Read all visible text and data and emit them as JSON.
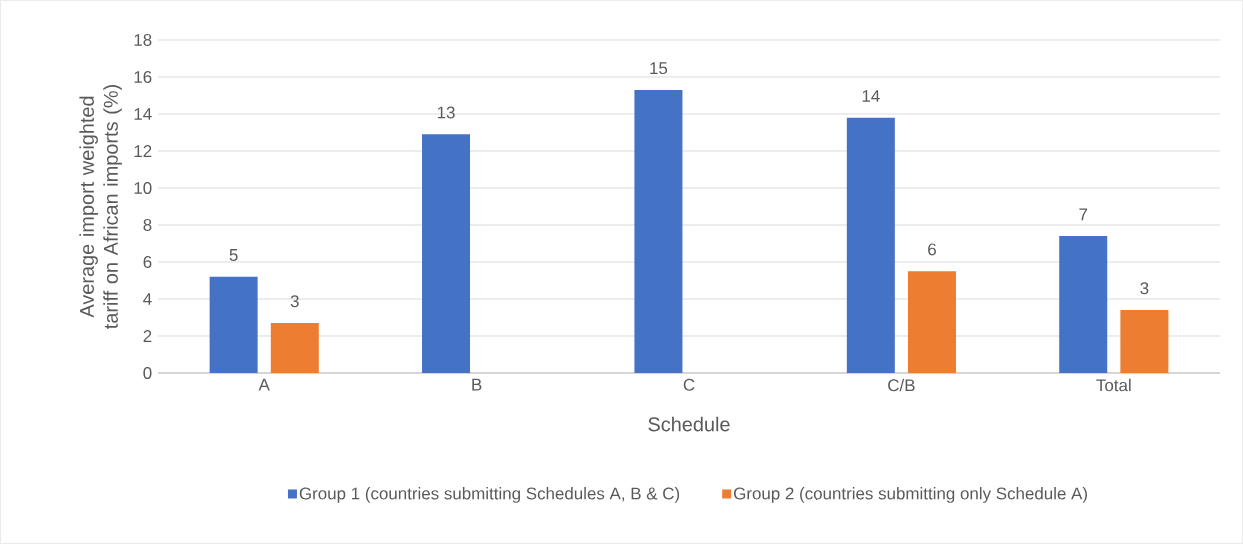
{
  "chart_data": {
    "type": "bar",
    "xlabel": "Schedule",
    "ylabel": "Average import weighted tariff on African imports (%)",
    "categories": [
      "A",
      "B",
      "C",
      "C/B",
      "Total"
    ],
    "series": [
      {
        "name": "Group 1 (countries submitting Schedules A, B & C)",
        "color": "#4472c4",
        "values": [
          5.2,
          12.9,
          15.3,
          13.8,
          7.4
        ],
        "value_labels": [
          "5",
          "13",
          "15",
          "14",
          "7"
        ]
      },
      {
        "name": "Group 2 (countries submitting only Schedule A)",
        "color": "#ed7d31",
        "values": [
          2.7,
          null,
          null,
          5.5,
          3.4
        ],
        "value_labels": [
          "3",
          null,
          null,
          "6",
          "3"
        ]
      }
    ],
    "ylim": [
      0,
      18
    ],
    "yticks": [
      0,
      2,
      4,
      6,
      8,
      10,
      12,
      14,
      16,
      18
    ],
    "grid": "y",
    "legend": "bottom"
  }
}
